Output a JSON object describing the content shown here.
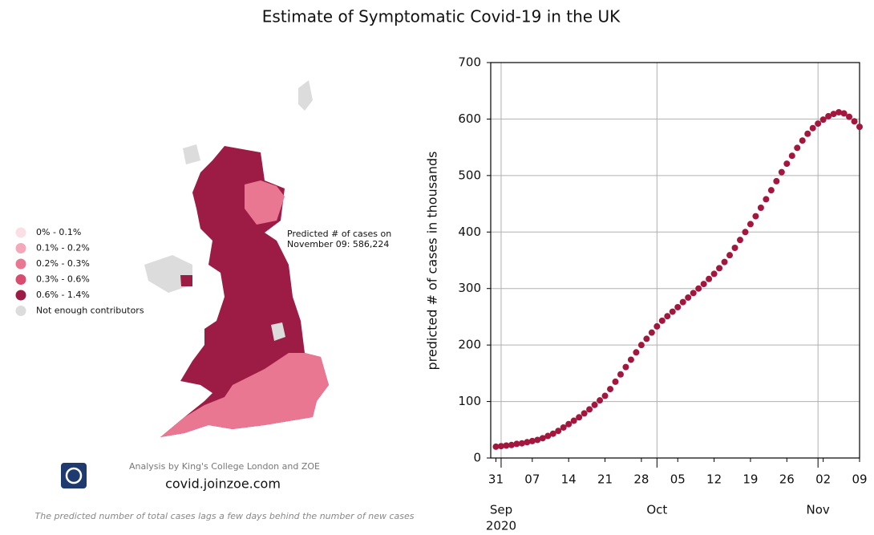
{
  "chart_data": {
    "type": "line",
    "title": "Estimate of Symptomatic Covid-19 in the UK",
    "y_label": "predicted # of cases in thousands",
    "color": "#a3173f",
    "grid": true,
    "x": [
      "2020-08-31",
      "2020-09-01",
      "2020-09-02",
      "2020-09-03",
      "2020-09-04",
      "2020-09-05",
      "2020-09-06",
      "2020-09-07",
      "2020-09-08",
      "2020-09-09",
      "2020-09-10",
      "2020-09-11",
      "2020-09-12",
      "2020-09-13",
      "2020-09-14",
      "2020-09-15",
      "2020-09-16",
      "2020-09-17",
      "2020-09-18",
      "2020-09-19",
      "2020-09-20",
      "2020-09-21",
      "2020-09-22",
      "2020-09-23",
      "2020-09-24",
      "2020-09-25",
      "2020-09-26",
      "2020-09-27",
      "2020-09-28",
      "2020-09-29",
      "2020-09-30",
      "2020-10-01",
      "2020-10-02",
      "2020-10-03",
      "2020-10-04",
      "2020-10-05",
      "2020-10-06",
      "2020-10-07",
      "2020-10-08",
      "2020-10-09",
      "2020-10-10",
      "2020-10-11",
      "2020-10-12",
      "2020-10-13",
      "2020-10-14",
      "2020-10-15",
      "2020-10-16",
      "2020-10-17",
      "2020-10-18",
      "2020-10-19",
      "2020-10-20",
      "2020-10-21",
      "2020-10-22",
      "2020-10-23",
      "2020-10-24",
      "2020-10-25",
      "2020-10-26",
      "2020-10-27",
      "2020-10-28",
      "2020-10-29",
      "2020-10-30",
      "2020-10-31",
      "2020-11-01",
      "2020-11-02",
      "2020-11-03",
      "2020-11-04",
      "2020-11-05",
      "2020-11-06",
      "2020-11-07",
      "2020-11-08",
      "2020-11-09"
    ],
    "values": [
      20,
      21,
      22,
      23,
      25,
      26,
      28,
      30,
      32,
      35,
      39,
      43,
      48,
      54,
      60,
      66,
      72,
      79,
      86,
      94,
      102,
      110,
      122,
      135,
      148,
      161,
      174,
      187,
      200,
      211,
      222,
      233,
      243,
      251,
      259,
      267,
      276,
      284,
      292,
      300,
      308,
      317,
      326,
      336,
      347,
      359,
      372,
      386,
      400,
      414,
      428,
      443,
      458,
      474,
      490,
      506,
      521,
      535,
      549,
      562,
      574,
      584,
      592,
      599,
      605,
      609,
      612,
      610,
      604,
      596,
      586.224
    ],
    "xlim": [
      "2020-08-30",
      "2020-11-09"
    ],
    "xticks": [
      {
        "value": "2020-08-31",
        "label": "31"
      },
      {
        "value": "2020-09-07",
        "label": "07"
      },
      {
        "value": "2020-09-14",
        "label": "14"
      },
      {
        "value": "2020-09-21",
        "label": "21"
      },
      {
        "value": "2020-09-28",
        "label": "28"
      },
      {
        "value": "2020-10-05",
        "label": "05"
      },
      {
        "value": "2020-10-12",
        "label": "12"
      },
      {
        "value": "2020-10-19",
        "label": "19"
      },
      {
        "value": "2020-10-26",
        "label": "26"
      },
      {
        "value": "2020-11-02",
        "label": "02"
      },
      {
        "value": "2020-11-09",
        "label": "09"
      }
    ],
    "x_month_ticks": [
      {
        "value": "2020-09-01",
        "label": "Sep"
      },
      {
        "value": "2020-10-01",
        "label": "Oct"
      },
      {
        "value": "2020-11-01",
        "label": "Nov"
      }
    ],
    "x_year_label": "2020",
    "ylim": [
      0,
      700
    ],
    "yticks": [
      0,
      100,
      200,
      300,
      400,
      500,
      600,
      700
    ]
  },
  "map": {
    "legend": [
      {
        "label": "0% - 0.1%",
        "color": "#fbdfe6"
      },
      {
        "label": "0.1% - 0.2%",
        "color": "#f3a9ba"
      },
      {
        "label": "0.2% - 0.3%",
        "color": "#e97791"
      },
      {
        "label": "0.3% - 0.6%",
        "color": "#d84c70"
      },
      {
        "label": "0.6% - 1.4%",
        "color": "#9c1c46"
      },
      {
        "label": "Not enough contributors",
        "color": "#dcdcdc"
      }
    ],
    "annotation": [
      "Predicted # of cases on",
      "November 09: 586,224"
    ],
    "credit": "Analysis by King's College London and ZOE",
    "url": "covid.joinzoe.com",
    "footnote": "The predicted number of total cases lags a few days behind the number of new cases"
  }
}
